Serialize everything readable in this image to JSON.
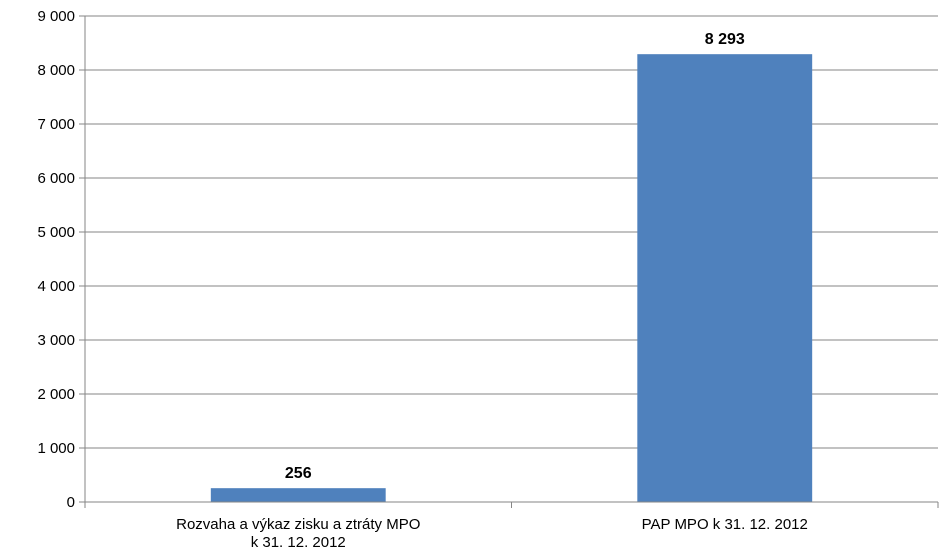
{
  "chart_data": {
    "type": "bar",
    "categories": [
      [
        "Rozvaha a výkaz zisku a ztráty MPO",
        "k 31. 12. 2012"
      ],
      [
        "PAP MPO k 31. 12. 2012"
      ]
    ],
    "values": [
      256,
      8293
    ],
    "value_labels": [
      "256",
      "8 293"
    ],
    "ylim": [
      0,
      9000
    ],
    "yticks": [
      0,
      1000,
      2000,
      3000,
      4000,
      5000,
      6000,
      7000,
      8000,
      9000
    ],
    "ytick_labels": [
      "0",
      "1 000",
      "2 000",
      "3 000",
      "4 000",
      "5 000",
      "6 000",
      "7 000",
      "8 000",
      "9 000"
    ],
    "grid": true,
    "legend": "none",
    "colors": {
      "bar": "#4F81BD",
      "grid": "#868686",
      "axis": "#868686"
    }
  }
}
